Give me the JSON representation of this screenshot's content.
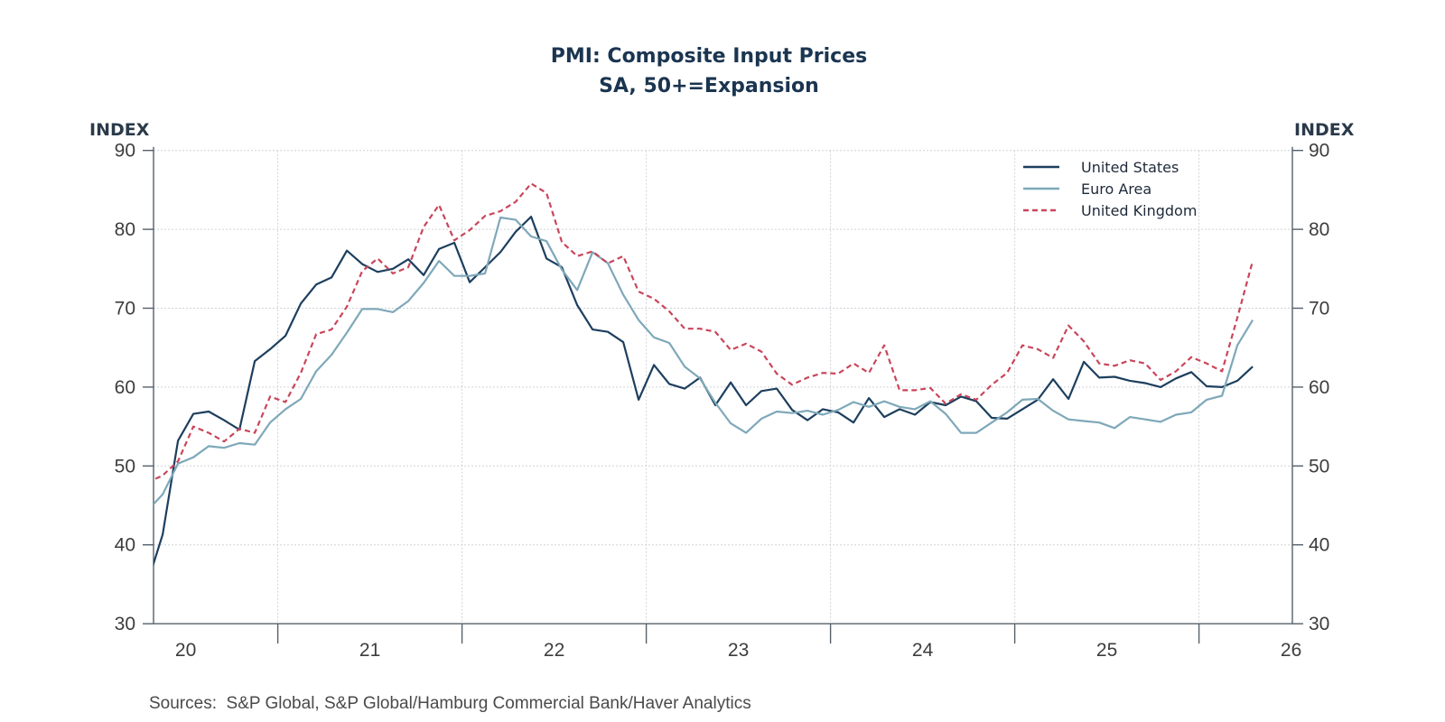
{
  "chart_data": {
    "type": "line",
    "title": "PMI: Composite Input Prices",
    "subtitle": "SA, 50+=Expansion",
    "ylabel_left": "INDEX",
    "ylabel_right": "INDEX",
    "ylim": [
      30,
      90
    ],
    "yticks": [
      "30",
      "40",
      "50",
      "60",
      "70",
      "80",
      "90"
    ],
    "xtick_labels": [
      "20",
      "21",
      "22",
      "23",
      "24",
      "25",
      "26"
    ],
    "grid": true,
    "legend_position": "top-right",
    "source": "Sources:  S&P Global, S&P Global/Hamburg Commercial Bank/Haver Analytics",
    "x": [
      "2020-04",
      "2020-05",
      "2020-06",
      "2020-07",
      "2020-08",
      "2020-09",
      "2020-10",
      "2020-11",
      "2020-12",
      "2021-01",
      "2021-02",
      "2021-03",
      "2021-04",
      "2021-05",
      "2021-06",
      "2021-07",
      "2021-08",
      "2021-09",
      "2021-10",
      "2021-11",
      "2021-12",
      "2022-01",
      "2022-02",
      "2022-03",
      "2022-04",
      "2022-05",
      "2022-06",
      "2022-07",
      "2022-08",
      "2022-09",
      "2022-10",
      "2022-11",
      "2022-12",
      "2023-01",
      "2023-02",
      "2023-03",
      "2023-04",
      "2023-05",
      "2023-06",
      "2023-07",
      "2023-08",
      "2023-09",
      "2023-10",
      "2023-11",
      "2023-12",
      "2024-01",
      "2024-02",
      "2024-03",
      "2024-04",
      "2024-05",
      "2024-06",
      "2024-07",
      "2024-08",
      "2024-09",
      "2024-10",
      "2024-11",
      "2024-12",
      "2025-01",
      "2025-02",
      "2025-03",
      "2025-04",
      "2025-05",
      "2025-06",
      "2025-07",
      "2025-08",
      "2025-09",
      "2025-10",
      "2025-11",
      "2025-12",
      "2026-01",
      "2026-02",
      "2026-03",
      "2026-04"
    ],
    "series": [
      {
        "name": "United States",
        "color": "#1d3f5e",
        "dashed": false,
        "values": [
          35.1,
          41.3,
          53.2,
          56.6,
          56.9,
          55.8,
          54.6,
          63.3,
          64.8,
          66.5,
          70.6,
          73.0,
          73.9,
          77.3,
          75.6,
          74.6,
          75.0,
          76.2,
          74.2,
          77.5,
          78.3,
          73.3,
          75.2,
          77.1,
          79.7,
          81.6,
          76.3,
          75.2,
          70.4,
          67.3,
          67.0,
          65.7,
          58.4,
          62.8,
          60.4,
          59.8,
          61.2,
          57.7,
          60.6,
          57.7,
          59.5,
          59.8,
          57.1,
          55.8,
          57.2,
          56.8,
          55.5,
          58.6,
          56.2,
          57.2,
          56.5,
          58.1,
          57.7,
          58.8,
          58.2,
          56.1,
          56.0,
          57.2,
          58.4,
          61.0,
          58.5,
          63.2,
          61.2,
          61.3,
          60.8,
          60.5,
          60.0,
          61.1,
          61.9,
          60.1,
          60.0,
          60.8,
          62.6
        ]
      },
      {
        "name": "Euro Area",
        "color": "#7ea8b9",
        "dashed": false,
        "values": [
          44.3,
          46.4,
          50.3,
          51.1,
          52.5,
          52.3,
          52.9,
          52.7,
          55.5,
          57.2,
          58.5,
          62.0,
          64.1,
          66.9,
          69.9,
          69.9,
          69.5,
          70.9,
          73.2,
          76.0,
          74.1,
          74.1,
          74.4,
          81.5,
          81.2,
          79.1,
          78.5,
          74.9,
          72.3,
          77.1,
          75.7,
          71.7,
          68.5,
          66.3,
          65.6,
          62.6,
          61.1,
          58.0,
          55.4,
          54.2,
          56.0,
          56.9,
          56.7,
          57.0,
          56.5,
          57.1,
          58.1,
          57.5,
          58.2,
          57.5,
          57.2,
          58.2,
          56.6,
          54.2,
          54.2,
          55.5,
          56.8,
          58.4,
          58.5,
          57.0,
          55.9,
          55.7,
          55.5,
          54.8,
          56.2,
          55.9,
          55.6,
          56.5,
          56.8,
          58.4,
          58.9,
          65.3,
          68.5
        ]
      },
      {
        "name": "United Kingdom",
        "color": "#c9465b",
        "dashed": true,
        "values": [
          47.9,
          48.8,
          50.6,
          55.0,
          54.2,
          53.1,
          54.7,
          54.2,
          58.8,
          58.1,
          61.8,
          66.7,
          67.3,
          70.2,
          74.7,
          76.3,
          74.4,
          75.2,
          80.3,
          83.1,
          78.6,
          79.9,
          81.7,
          82.3,
          83.5,
          85.8,
          84.6,
          78.4,
          76.6,
          77.2,
          75.7,
          76.6,
          72.1,
          71.2,
          69.6,
          67.4,
          67.4,
          67.0,
          64.7,
          65.5,
          64.5,
          61.7,
          60.3,
          61.2,
          61.8,
          61.7,
          63.0,
          61.8,
          65.3,
          59.6,
          59.6,
          59.9,
          57.9,
          59.1,
          58.4,
          60.3,
          61.8,
          65.3,
          64.8,
          63.7,
          67.8,
          65.8,
          63.0,
          62.7,
          63.4,
          63.0,
          60.9,
          62.0,
          63.8,
          63.0,
          62.0,
          68.8,
          76.0
        ]
      }
    ]
  }
}
